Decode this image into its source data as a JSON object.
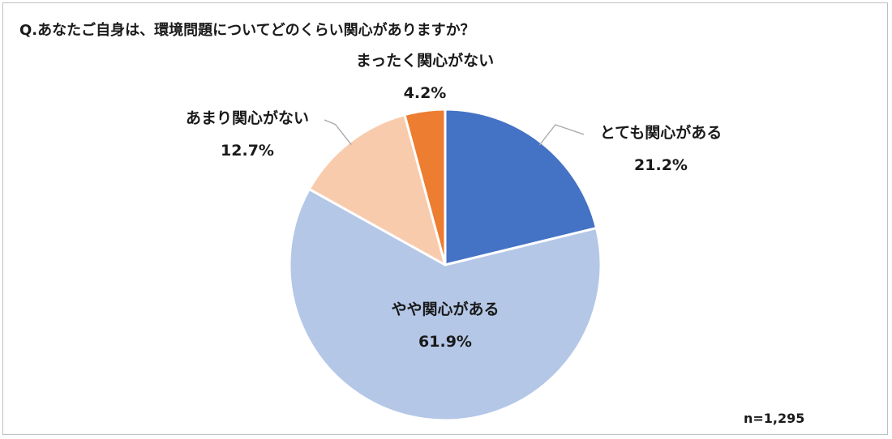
{
  "title": "Q.あなたご自身は、環境問題についてどのくらい関心がありますか？",
  "sample_size": "n=1,295",
  "chart_data": {
    "type": "pie",
    "title": "Q.あなたご自身は、環境問題についてどのくらい関心がありますか？",
    "start": "12 o'clock, clockwise",
    "legend": "none (labels on chart)",
    "slices": [
      {
        "label": "とても関心がある",
        "value": 21.2,
        "value_label": "21.2%",
        "color": "#4472c4"
      },
      {
        "label": "やや関心がある",
        "value": 61.9,
        "value_label": "61.9%",
        "color": "#b4c7e7"
      },
      {
        "label": "あまり関心がない",
        "value": 12.7,
        "value_label": "12.7%",
        "color": "#f8cbad"
      },
      {
        "label": "まったく関心がない",
        "value": 4.2,
        "value_label": "4.2%",
        "color": "#ed7d31"
      }
    ]
  }
}
